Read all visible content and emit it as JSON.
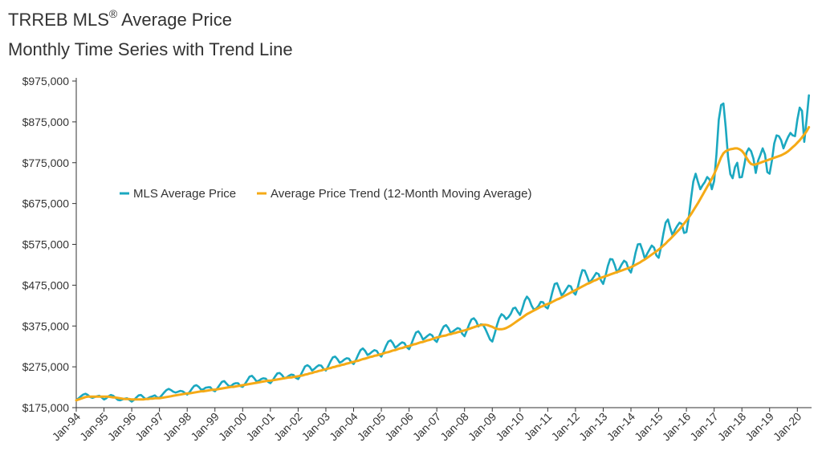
{
  "title": {
    "line1_main": "TRREB MLS",
    "line1_sup": "®",
    "line1_rest": " Average Price",
    "line2": "Monthly Time Series with Trend Line"
  },
  "colors": {
    "price": "#1BA8C0",
    "trend": "#F5AA16",
    "axis": "#333333"
  },
  "chart_data": {
    "type": "line",
    "title": "TRREB MLS® Average Price — Monthly Time Series with Trend Line",
    "xlabel": "",
    "ylabel": "",
    "ylim": [
      175000,
      975000
    ],
    "yticks": [
      175000,
      275000,
      375000,
      475000,
      575000,
      675000,
      775000,
      875000,
      975000
    ],
    "ytick_labels": [
      "$175,000",
      "$275,000",
      "$375,000",
      "$475,000",
      "$575,000",
      "$675,000",
      "$775,000",
      "$875,000",
      "$975,000"
    ],
    "x_start": "Jan-94",
    "x_end": "Jun-20",
    "xtick_labels": [
      "Jan-94",
      "Jan-95",
      "Jan-96",
      "Jan-97",
      "Jan-98",
      "Jan-99",
      "Jan-00",
      "Jan-01",
      "Jan-02",
      "Jan-03",
      "Jan-04",
      "Jan-05",
      "Jan-06",
      "Jan-07",
      "Jan-08",
      "Jan-09",
      "Jan-10",
      "Jan-11",
      "Jan-12",
      "Jan-13",
      "Jan-14",
      "Jan-15",
      "Jan-16",
      "Jan-17",
      "Jan-18",
      "Jan-19",
      "Jan-20"
    ],
    "legend": [
      "MLS Average Price",
      "Average Price Trend (12-Month Moving Average)"
    ],
    "series": [
      {
        "name": "MLS Average Price",
        "values": [
          193000,
          198000,
          203000,
          207000,
          209000,
          206000,
          201000,
          199000,
          201000,
          203000,
          204000,
          200000,
          195000,
          198000,
          203000,
          206000,
          204000,
          199000,
          194000,
          193000,
          195000,
          197000,
          198000,
          194000,
          190000,
          194000,
          200000,
          205000,
          206000,
          201000,
          196000,
          198000,
          201000,
          203000,
          205000,
          200000,
          199000,
          205000,
          212000,
          218000,
          221000,
          218000,
          214000,
          212000,
          214000,
          216000,
          215000,
          211000,
          207000,
          213000,
          221000,
          228000,
          230000,
          226000,
          219000,
          220000,
          224000,
          225000,
          225000,
          218000,
          215000,
          222000,
          230000,
          238000,
          240000,
          234000,
          228000,
          228000,
          233000,
          235000,
          235000,
          228000,
          226000,
          233000,
          242000,
          251000,
          253000,
          247000,
          239000,
          241000,
          245000,
          247000,
          246000,
          238000,
          235000,
          242000,
          251000,
          259000,
          260000,
          255000,
          247000,
          249000,
          253000,
          256000,
          255000,
          248000,
          245000,
          254000,
          265000,
          276000,
          279000,
          275000,
          266000,
          270000,
          275000,
          279000,
          278000,
          270000,
          266000,
          276000,
          288000,
          298000,
          300000,
          294000,
          285000,
          288000,
          293000,
          296000,
          295000,
          286000,
          282000,
          292000,
          305000,
          316000,
          320000,
          314000,
          304000,
          307000,
          312000,
          316000,
          314000,
          305000,
          300000,
          312000,
          326000,
          337000,
          340000,
          333000,
          322000,
          326000,
          331000,
          335000,
          333000,
          323000,
          318000,
          331000,
          346000,
          359000,
          362000,
          354000,
          342000,
          346000,
          351000,
          355000,
          352000,
          341000,
          336000,
          349000,
          363000,
          374000,
          377000,
          370000,
          358000,
          362000,
          366000,
          370000,
          368000,
          356000,
          350000,
          364000,
          379000,
          391000,
          394000,
          387000,
          374000,
          379000,
          378000,
          368000,
          355000,
          342000,
          337000,
          355000,
          376000,
          394000,
          404000,
          400000,
          392000,
          397000,
          405000,
          418000,
          420000,
          410000,
          402000,
          418000,
          437000,
          447000,
          440000,
          425000,
          415000,
          418000,
          424000,
          434000,
          433000,
          422000,
          418000,
          435000,
          458000,
          478000,
          480000,
          466000,
          450000,
          456000,
          465000,
          474000,
          472000,
          458000,
          452000,
          470000,
          494000,
          512000,
          511000,
          497000,
          481000,
          488000,
          496000,
          505000,
          502000,
          487000,
          478000,
          498000,
          522000,
          539000,
          538000,
          524000,
          506000,
          515000,
          526000,
          535000,
          531000,
          514000,
          506000,
          528000,
          555000,
          575000,
          576000,
          560000,
          540000,
          552000,
          562000,
          572000,
          567000,
          548000,
          542000,
          568000,
          600000,
          628000,
          636000,
          615000,
          597000,
          610000,
          620000,
          628000,
          625000,
          603000,
          605000,
          640000,
          688000,
          729000,
          748000,
          728000,
          710000,
          720000,
          728000,
          740000,
          734000,
          710000,
          730000,
          795000,
          880000,
          916000,
          920000,
          863000,
          790000,
          747000,
          737000,
          764000,
          775000,
          739000,
          740000,
          768000,
          800000,
          810000,
          803000,
          785000,
          750000,
          780000,
          794000,
          810000,
          795000,
          752000,
          748000,
          780000,
          822000,
          842000,
          840000,
          830000,
          810000,
          825000,
          838000,
          848000,
          842000,
          840000,
          880000,
          910000,
          902000,
          826000,
          880000,
          940000
        ]
      },
      {
        "name": "Average Price Trend (12-Month Moving Average)",
        "values": [
          193000,
          195000,
          197000,
          199000,
          201000,
          202000,
          202000,
          202000,
          202000,
          202000,
          202000,
          202000,
          202000,
          202000,
          202000,
          201000,
          200000,
          200000,
          199000,
          198000,
          197000,
          196000,
          196000,
          196000,
          195000,
          195000,
          195000,
          195000,
          195000,
          195000,
          196000,
          196000,
          197000,
          197000,
          198000,
          198000,
          198000,
          199000,
          200000,
          201000,
          202000,
          203000,
          204000,
          205000,
          206000,
          207000,
          208000,
          209000,
          210000,
          210000,
          211000,
          212000,
          213000,
          214000,
          215000,
          215000,
          216000,
          217000,
          218000,
          219000,
          219000,
          220000,
          221000,
          222000,
          223000,
          224000,
          225000,
          226000,
          226000,
          227000,
          228000,
          229000,
          230000,
          231000,
          232000,
          233000,
          234000,
          235000,
          236000,
          237000,
          238000,
          239000,
          240000,
          241000,
          241000,
          242000,
          243000,
          244000,
          245000,
          246000,
          247000,
          248000,
          249000,
          249000,
          250000,
          251000,
          252000,
          253000,
          254000,
          256000,
          257000,
          259000,
          260000,
          262000,
          263000,
          265000,
          266000,
          268000,
          269000,
          271000,
          272000,
          274000,
          275000,
          277000,
          278000,
          280000,
          281000,
          283000,
          284000,
          286000,
          287000,
          289000,
          290000,
          292000,
          294000,
          295000,
          297000,
          299000,
          300000,
          302000,
          303000,
          305000,
          306000,
          308000,
          310000,
          311000,
          313000,
          315000,
          316000,
          318000,
          320000,
          321000,
          323000,
          325000,
          326000,
          328000,
          330000,
          331000,
          333000,
          335000,
          336000,
          338000,
          340000,
          341000,
          343000,
          345000,
          347000,
          348000,
          350000,
          351000,
          352000,
          354000,
          355000,
          357000,
          358000,
          360000,
          361000,
          363000,
          364000,
          366000,
          368000,
          370000,
          372000,
          374000,
          376000,
          377000,
          378000,
          378000,
          377000,
          375000,
          373000,
          370000,
          368000,
          367000,
          367000,
          368000,
          370000,
          373000,
          376000,
          380000,
          384000,
          388000,
          392000,
          396000,
          400000,
          404000,
          407000,
          410000,
          413000,
          416000,
          419000,
          422000,
          424000,
          427000,
          429000,
          431000,
          434000,
          437000,
          440000,
          442000,
          445000,
          448000,
          451000,
          454000,
          457000,
          460000,
          463000,
          466000,
          469000,
          472000,
          475000,
          478000,
          480000,
          483000,
          486000,
          488000,
          491000,
          493000,
          495000,
          497000,
          499000,
          501000,
          503000,
          505000,
          507000,
          509000,
          511000,
          513000,
          515000,
          517000,
          519000,
          522000,
          525000,
          528000,
          531000,
          535000,
          538000,
          542000,
          546000,
          550000,
          554000,
          558000,
          562000,
          567000,
          572000,
          577000,
          583000,
          588000,
          594000,
          600000,
          606000,
          612000,
          619000,
          626000,
          633000,
          641000,
          649000,
          658000,
          667000,
          676000,
          686000,
          696000,
          706000,
          716000,
          726000,
          736000,
          747000,
          760000,
          774000,
          788000,
          798000,
          803000,
          806000,
          808000,
          809000,
          810000,
          810000,
          808000,
          804000,
          797000,
          787000,
          778000,
          772000,
          770000,
          771000,
          773000,
          775000,
          777000,
          779000,
          781000,
          783000,
          785000,
          787000,
          789000,
          791000,
          793000,
          796000,
          799000,
          803000,
          808000,
          813000,
          818000,
          824000,
          830000,
          837000,
          844000,
          852000,
          862000
        ]
      }
    ]
  }
}
